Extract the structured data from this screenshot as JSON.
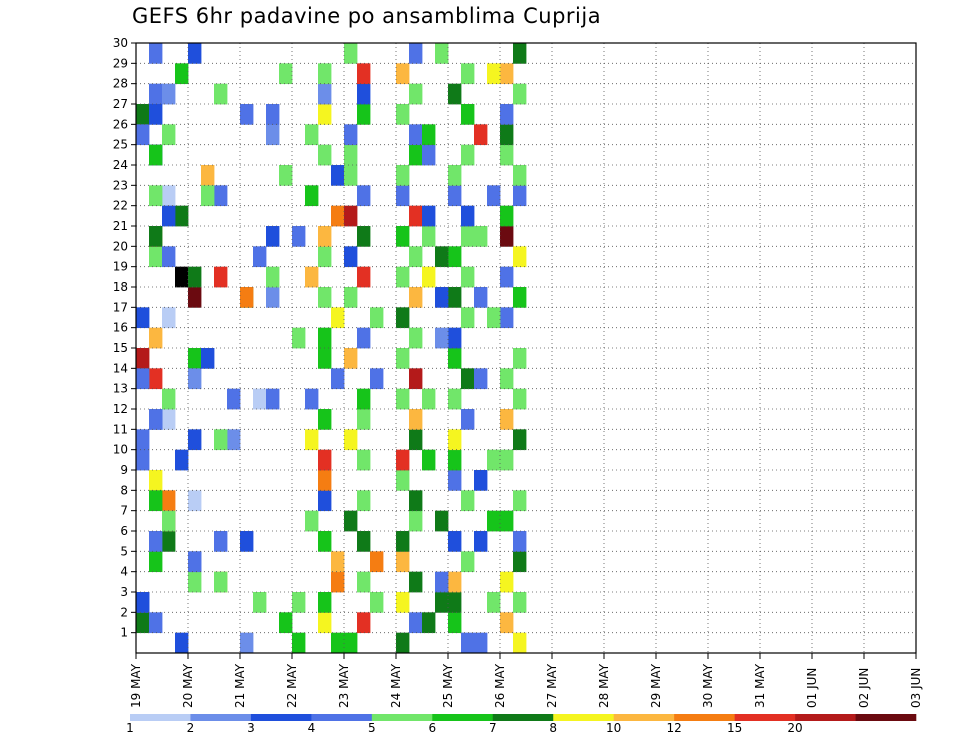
{
  "chart_data": {
    "type": "heatmap",
    "title": "GEFS 6hr padavine po ansamblima Cuprija",
    "x_tick_labels": [
      "19 MAY",
      "20 MAY",
      "21 MAY",
      "22 MAY",
      "23 MAY",
      "24 MAY",
      "25 MAY",
      "26 MAY",
      "27 MAY",
      "28 MAY",
      "29 MAY",
      "30 MAY",
      "31 MAY",
      "01 JUN",
      "02 JUN",
      "03 JUN"
    ],
    "y_tick_labels": [
      "1",
      "2",
      "3",
      "4",
      "5",
      "6",
      "7",
      "8",
      "9",
      "10",
      "11",
      "12",
      "13",
      "14",
      "15",
      "16",
      "17",
      "18",
      "19",
      "20",
      "21",
      "22",
      "23",
      "24",
      "25",
      "26",
      "27",
      "28",
      "29",
      "30"
    ],
    "colorbar": {
      "labels": [
        "1",
        "2",
        "3",
        "4",
        "5",
        "6",
        "7",
        "8",
        "10",
        "12",
        "15",
        "20"
      ],
      "colors": [
        "#b9cdf5",
        "#6c8ee9",
        "#1f4fdc",
        "#4f72e6",
        "#71e66a",
        "#16c41a",
        "#0f7a18",
        "#f5f520",
        "#fcb740",
        "#f57d12",
        "#e33023",
        "#b41a1a",
        "#6b0a10"
      ]
    },
    "grid": true,
    "steps_per_day": 4,
    "n_members": 30,
    "cells": [
      [
        1,
        0,
        6
      ],
      [
        2,
        0,
        3
      ],
      [
        3,
        4,
        4
      ],
      [
        4,
        1,
        5
      ],
      [
        5,
        2,
        6
      ],
      [
        6,
        2,
        10
      ],
      [
        7,
        2,
        9
      ],
      [
        8,
        1,
        7
      ],
      [
        10,
        0,
        3
      ],
      [
        11,
        2,
        0
      ],
      [
        12,
        9,
        0
      ],
      [
        13,
        1,
        10
      ],
      [
        14,
        0,
        11
      ],
      [
        15,
        1,
        8
      ],
      [
        16,
        2,
        0
      ],
      [
        17,
        4,
        12
      ],
      [
        18,
        3,
        13
      ],
      [
        19,
        1,
        4
      ],
      [
        20,
        1,
        8
      ],
      [
        21,
        3,
        6
      ],
      [
        22,
        2,
        0
      ],
      [
        23,
        5,
        8
      ],
      [
        24,
        1,
        3
      ],
      [
        25,
        10,
        1
      ],
      [
        26,
        0,
        6
      ],
      [
        27,
        1,
        3
      ],
      [
        28,
        3,
        5
      ],
      [
        29,
        1,
        3
      ],
      [
        0,
        3,
        2
      ],
      [
        1,
        1,
        3
      ],
      [
        2,
        0,
        2
      ],
      [
        3,
        6,
        8
      ],
      [
        4,
        4,
        1
      ],
      [
        5,
        1,
        3
      ],
      [
        7,
        1,
        5
      ],
      [
        9,
        0,
        3
      ],
      [
        10,
        4,
        2
      ],
      [
        11,
        1,
        2
      ],
      [
        12,
        2,
        4
      ],
      [
        13,
        0,
        3
      ],
      [
        14,
        4,
        5
      ],
      [
        16,
        0,
        2
      ],
      [
        17,
        8,
        4
      ],
      [
        18,
        4,
        6
      ],
      [
        20,
        1,
        6
      ],
      [
        21,
        2,
        2
      ],
      [
        22,
        1,
        4
      ],
      [
        24,
        1,
        2
      ],
      [
        25,
        0,
        3
      ],
      [
        26,
        1,
        2
      ],
      [
        27,
        2,
        1
      ],
      [
        0,
        12,
        5
      ],
      [
        1,
        11,
        5
      ],
      [
        2,
        12,
        4
      ],
      [
        3,
        6,
        4
      ],
      [
        4,
        4,
        3
      ],
      [
        5,
        8,
        2
      ],
      [
        6,
        2,
        4
      ],
      [
        7,
        4,
        0
      ],
      [
        9,
        3,
        2
      ],
      [
        10,
        7,
        1
      ],
      [
        11,
        1,
        3
      ],
      [
        12,
        7,
        3
      ],
      [
        13,
        4,
        1
      ],
      [
        14,
        5,
        2
      ],
      [
        16,
        2,
        0
      ],
      [
        17,
        8,
        9
      ],
      [
        18,
        6,
        10
      ],
      [
        19,
        2,
        3
      ],
      [
        20,
        10,
        2
      ],
      [
        22,
        6,
        3
      ],
      [
        24,
        1,
        5
      ],
      [
        25,
        2,
        4
      ],
      [
        26,
        8,
        3
      ],
      [
        28,
        11,
        4
      ],
      [
        0,
        15,
        5
      ],
      [
        1,
        14,
        7
      ],
      [
        2,
        14,
        5
      ],
      [
        3,
        15,
        9
      ],
      [
        4,
        15,
        8
      ],
      [
        5,
        14,
        5
      ],
      [
        6,
        13,
        4
      ],
      [
        7,
        14,
        2
      ],
      [
        8,
        14,
        9
      ],
      [
        9,
        14,
        10
      ],
      [
        10,
        13,
        7
      ],
      [
        11,
        14,
        5
      ],
      [
        12,
        13,
        3
      ],
      [
        13,
        15,
        3
      ],
      [
        14,
        14,
        5
      ],
      [
        15,
        14,
        5
      ],
      [
        16,
        15,
        7
      ],
      [
        17,
        14,
        4
      ],
      [
        18,
        13,
        8
      ],
      [
        19,
        14,
        4
      ],
      [
        20,
        14,
        8
      ],
      [
        21,
        15,
        9
      ],
      [
        22,
        13,
        5
      ],
      [
        23,
        15,
        2
      ],
      [
        24,
        14,
        4
      ],
      [
        25,
        13,
        4
      ],
      [
        26,
        14,
        7
      ],
      [
        27,
        14,
        1
      ],
      [
        28,
        14,
        4
      ],
      [
        0,
        16,
        5
      ],
      [
        1,
        17,
        10
      ],
      [
        2,
        18,
        4
      ],
      [
        3,
        17,
        4
      ],
      [
        4,
        18,
        9
      ],
      [
        5,
        17,
        6
      ],
      [
        6,
        16,
        6
      ],
      [
        7,
        17,
        4
      ],
      [
        9,
        17,
        4
      ],
      [
        10,
        16,
        7
      ],
      [
        11,
        17,
        4
      ],
      [
        12,
        17,
        5
      ],
      [
        13,
        18,
        3
      ],
      [
        14,
        16,
        8
      ],
      [
        15,
        17,
        3
      ],
      [
        16,
        18,
        4
      ],
      [
        17,
        16,
        4
      ],
      [
        18,
        17,
        10
      ],
      [
        19,
        16,
        2
      ],
      [
        20,
        17,
        6
      ],
      [
        21,
        16,
        11
      ],
      [
        22,
        17,
        3
      ],
      [
        23,
        16,
        4
      ],
      [
        24,
        16,
        4
      ],
      [
        25,
        16,
        3
      ],
      [
        26,
        17,
        5
      ],
      [
        27,
        17,
        2
      ],
      [
        28,
        17,
        10
      ],
      [
        29,
        16,
        4
      ],
      [
        0,
        20,
        6
      ],
      [
        1,
        21,
        3
      ],
      [
        2,
        20,
        7
      ],
      [
        3,
        21,
        6
      ],
      [
        4,
        20,
        8
      ],
      [
        5,
        20,
        6
      ],
      [
        6,
        21,
        4
      ],
      [
        7,
        21,
        6
      ],
      [
        8,
        20,
        4
      ],
      [
        9,
        20,
        10
      ],
      [
        10,
        21,
        6
      ],
      [
        11,
        21,
        8
      ],
      [
        12,
        20,
        4
      ],
      [
        13,
        21,
        11
      ],
      [
        14,
        20,
        4
      ],
      [
        15,
        21,
        4
      ],
      [
        16,
        20,
        6
      ],
      [
        17,
        21,
        8
      ],
      [
        18,
        20,
        4
      ],
      [
        19,
        21,
        4
      ],
      [
        20,
        20,
        5
      ],
      [
        21,
        21,
        10
      ],
      [
        22,
        20,
        3
      ],
      [
        23,
        20,
        4
      ],
      [
        24,
        21,
        5
      ],
      [
        25,
        21,
        3
      ],
      [
        26,
        20,
        4
      ],
      [
        27,
        21,
        4
      ],
      [
        28,
        20,
        8
      ],
      [
        29,
        21,
        3
      ],
      [
        0,
        25,
        3
      ],
      [
        1,
        24,
        5
      ],
      [
        2,
        24,
        6
      ],
      [
        3,
        24,
        8
      ],
      [
        4,
        25,
        4
      ],
      [
        5,
        24,
        2
      ],
      [
        7,
        25,
        4
      ],
      [
        8,
        24,
        3
      ],
      [
        9,
        24,
        5
      ],
      [
        10,
        24,
        7
      ],
      [
        11,
        25,
        3
      ],
      [
        12,
        24,
        4
      ],
      [
        13,
        25,
        6
      ],
      [
        14,
        24,
        5
      ],
      [
        15,
        24,
        2
      ],
      [
        16,
        25,
        4
      ],
      [
        17,
        24,
        6
      ],
      [
        18,
        25,
        4
      ],
      [
        19,
        24,
        5
      ],
      [
        20,
        25,
        4
      ],
      [
        21,
        25,
        2
      ],
      [
        22,
        24,
        3
      ],
      [
        23,
        24,
        4
      ],
      [
        24,
        25,
        4
      ],
      [
        26,
        25,
        5
      ],
      [
        27,
        24,
        6
      ],
      [
        28,
        25,
        4
      ],
      [
        0,
        29,
        7
      ],
      [
        1,
        28,
        8
      ],
      [
        2,
        29,
        4
      ],
      [
        3,
        28,
        7
      ],
      [
        4,
        29,
        6
      ],
      [
        5,
        29,
        3
      ],
      [
        6,
        28,
        5
      ],
      [
        7,
        29,
        4
      ],
      [
        9,
        28,
        4
      ],
      [
        10,
        29,
        6
      ],
      [
        11,
        28,
        8
      ],
      [
        12,
        29,
        4
      ],
      [
        13,
        28,
        4
      ],
      [
        14,
        29,
        4
      ],
      [
        16,
        28,
        3
      ],
      [
        17,
        29,
        5
      ],
      [
        18,
        28,
        3
      ],
      [
        19,
        29,
        7
      ],
      [
        20,
        28,
        12
      ],
      [
        21,
        28,
        5
      ],
      [
        22,
        29,
        3
      ],
      [
        23,
        29,
        4
      ],
      [
        24,
        28,
        4
      ],
      [
        25,
        28,
        6
      ],
      [
        26,
        28,
        3
      ],
      [
        27,
        29,
        4
      ],
      [
        28,
        28,
        8
      ],
      [
        29,
        29,
        6
      ],
      [
        0,
        8,
        1
      ],
      [
        2,
        9,
        4
      ],
      [
        5,
        6,
        3
      ],
      [
        10,
        6,
        4
      ],
      [
        12,
        10,
        3
      ],
      [
        15,
        12,
        4
      ],
      [
        17,
        10,
        1
      ],
      [
        18,
        10,
        4
      ],
      [
        19,
        9,
        3
      ],
      [
        20,
        12,
        3
      ],
      [
        22,
        5,
        4
      ],
      [
        23,
        11,
        4
      ],
      [
        26,
        10,
        3
      ],
      [
        27,
        6,
        4
      ],
      [
        29,
        4,
        2
      ],
      [
        1,
        22,
        6
      ],
      [
        2,
        23,
        6
      ],
      [
        3,
        23,
        3
      ],
      [
        6,
        23,
        6
      ],
      [
        9,
        22,
        5
      ],
      [
        12,
        22,
        4
      ],
      [
        15,
        23,
        1
      ],
      [
        17,
        23,
        2
      ],
      [
        18,
        22,
        7
      ],
      [
        19,
        23,
        6
      ],
      [
        20,
        22,
        4
      ],
      [
        21,
        22,
        2
      ],
      [
        24,
        22,
        3
      ],
      [
        25,
        22,
        5
      ],
      [
        29,
        23,
        4
      ],
      [
        0,
        26,
        3
      ],
      [
        2,
        27,
        4
      ],
      [
        5,
        26,
        2
      ],
      [
        6,
        27,
        5
      ],
      [
        8,
        26,
        2
      ],
      [
        9,
        27,
        4
      ],
      [
        13,
        26,
        3
      ],
      [
        16,
        27,
        4
      ],
      [
        17,
        26,
        3
      ],
      [
        20,
        26,
        4
      ],
      [
        22,
        27,
        3
      ],
      [
        25,
        26,
        10
      ],
      [
        28,
        27,
        7
      ]
    ]
  }
}
